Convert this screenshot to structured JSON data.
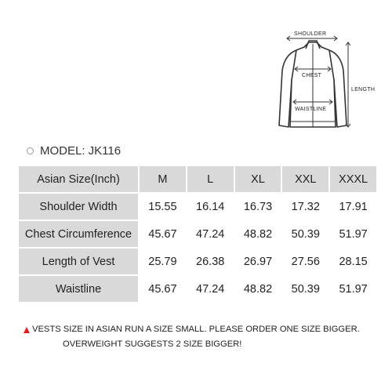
{
  "diagram": {
    "labels": {
      "shoulder": "SHOULDER",
      "chest": "CHEST",
      "waistline": "WAISTLINE",
      "length": "LENGTH"
    },
    "line_color": "#333333"
  },
  "model": {
    "icon": "circle-bullet-icon",
    "text": "MODEL: JK116"
  },
  "table": {
    "header": {
      "label": "Asian Size(Inch)",
      "sizes": [
        "M",
        "L",
        "XL",
        "XXL",
        "XXXL"
      ]
    },
    "rows": [
      {
        "label": "Shoulder Width",
        "values": [
          "15.55",
          "16.14",
          "16.73",
          "17.32",
          "17.91"
        ]
      },
      {
        "label": "Chest Circumference",
        "values": [
          "45.67",
          "47.24",
          "48.82",
          "50.39",
          "51.97"
        ]
      },
      {
        "label": "Length of Vest",
        "values": [
          "25.79",
          "26.38",
          "26.97",
          "27.56",
          "28.15"
        ]
      },
      {
        "label": "Waistline",
        "values": [
          "45.67",
          "47.24",
          "48.82",
          "50.39",
          "51.97"
        ]
      }
    ],
    "label_bg": "#d9d9d9"
  },
  "note": {
    "icon": "warning-triangle-icon",
    "icon_color": "#e02020",
    "line1": "VESTS SIZE IN ASIAN RUN A SIZE SMALL. PLEASE ORDER ONE SIZE BIGGER.",
    "line2": "OVERWEIGHT SUGGESTS 2 SIZE BIGGER!"
  }
}
